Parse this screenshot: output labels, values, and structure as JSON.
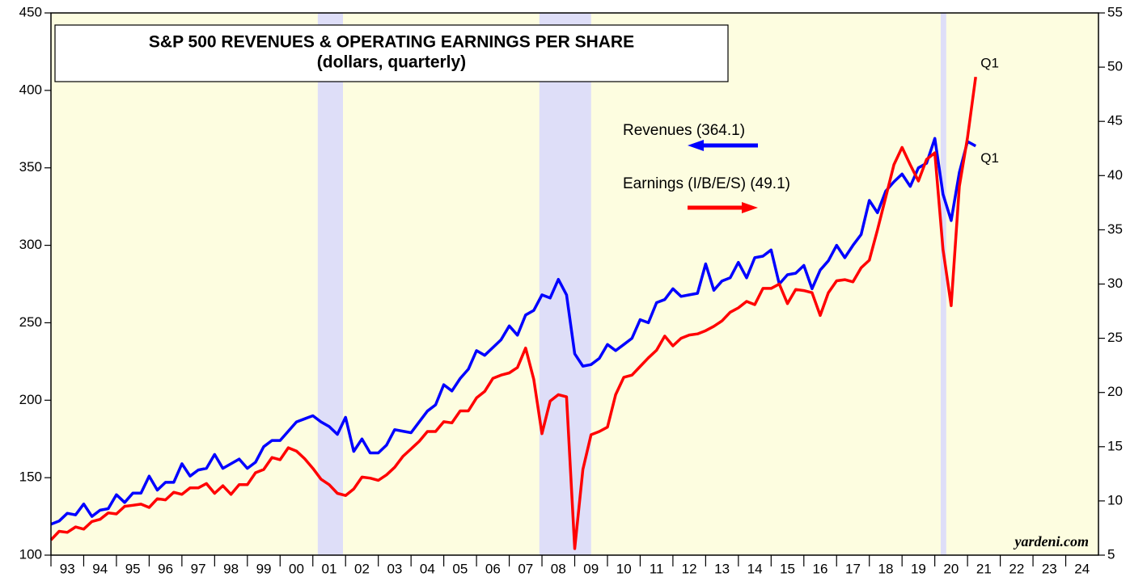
{
  "chart_data": {
    "type": "line",
    "title": "S&P 500 REVENUES & OPERATING EARNINGS PER SHARE",
    "subtitle": "(dollars, quarterly)",
    "source": "yardeni.com",
    "annotations": [
      {
        "text": "Q1",
        "series": 1
      },
      {
        "text": "Q1",
        "series": 0
      }
    ],
    "xlim": [
      1993,
      2025
    ],
    "xticks": [
      {
        "value": 1993,
        "label": "93"
      },
      {
        "value": 1994,
        "label": "94"
      },
      {
        "value": 1995,
        "label": "95"
      },
      {
        "value": 1996,
        "label": "96"
      },
      {
        "value": 1997,
        "label": "97"
      },
      {
        "value": 1998,
        "label": "98"
      },
      {
        "value": 1999,
        "label": "99"
      },
      {
        "value": 2000,
        "label": "00"
      },
      {
        "value": 2001,
        "label": "01"
      },
      {
        "value": 2002,
        "label": "02"
      },
      {
        "value": 2003,
        "label": "03"
      },
      {
        "value": 2004,
        "label": "04"
      },
      {
        "value": 2005,
        "label": "05"
      },
      {
        "value": 2006,
        "label": "06"
      },
      {
        "value": 2007,
        "label": "07"
      },
      {
        "value": 2008,
        "label": "08"
      },
      {
        "value": 2009,
        "label": "09"
      },
      {
        "value": 2010,
        "label": "10"
      },
      {
        "value": 2011,
        "label": "11"
      },
      {
        "value": 2012,
        "label": "12"
      },
      {
        "value": 2013,
        "label": "13"
      },
      {
        "value": 2014,
        "label": "14"
      },
      {
        "value": 2015,
        "label": "15"
      },
      {
        "value": 2016,
        "label": "16"
      },
      {
        "value": 2017,
        "label": "17"
      },
      {
        "value": 2018,
        "label": "18"
      },
      {
        "value": 2019,
        "label": "19"
      },
      {
        "value": 2020,
        "label": "20"
      },
      {
        "value": 2021,
        "label": "21"
      },
      {
        "value": 2022,
        "label": "22"
      },
      {
        "value": 2023,
        "label": "23"
      },
      {
        "value": 2024,
        "label": "24"
      }
    ],
    "ylim": [
      100,
      450
    ],
    "yticks": [
      100,
      150,
      200,
      250,
      300,
      350,
      400,
      450
    ],
    "y2lim": [
      5,
      55
    ],
    "y2ticks": [
      5,
      10,
      15,
      20,
      25,
      30,
      35,
      40,
      45,
      50,
      55
    ],
    "background": "#fdfde0",
    "recessions": {
      "color": "#dedef8",
      "ranges": [
        [
          2001.15,
          2001.92
        ],
        [
          2007.92,
          2009.5
        ],
        [
          2020.18,
          2020.35
        ]
      ]
    },
    "x": [
      1993,
      1993.25,
      1993.5,
      1993.75,
      1994,
      1994.25,
      1994.5,
      1994.75,
      1995,
      1995.25,
      1995.5,
      1995.75,
      1996,
      1996.25,
      1996.5,
      1996.75,
      1997,
      1997.25,
      1997.5,
      1997.75,
      1998,
      1998.25,
      1998.5,
      1998.75,
      1999,
      1999.25,
      1999.5,
      1999.75,
      2000,
      2000.25,
      2000.5,
      2000.75,
      2001,
      2001.25,
      2001.5,
      2001.75,
      2002,
      2002.25,
      2002.5,
      2002.75,
      2003,
      2003.25,
      2003.5,
      2003.75,
      2004,
      2004.25,
      2004.5,
      2004.75,
      2005,
      2005.25,
      2005.5,
      2005.75,
      2006,
      2006.25,
      2006.5,
      2006.75,
      2007,
      2007.25,
      2007.5,
      2007.75,
      2008,
      2008.25,
      2008.5,
      2008.75,
      2009,
      2009.25,
      2009.5,
      2009.75,
      2010,
      2010.25,
      2010.5,
      2010.75,
      2011,
      2011.25,
      2011.5,
      2011.75,
      2012,
      2012.25,
      2012.5,
      2012.75,
      2013,
      2013.25,
      2013.5,
      2013.75,
      2014,
      2014.25,
      2014.5,
      2014.75,
      2015,
      2015.25,
      2015.5,
      2015.75,
      2016,
      2016.25,
      2016.5,
      2016.75,
      2017,
      2017.25,
      2017.5,
      2017.75,
      2018,
      2018.25,
      2018.5,
      2018.75,
      2019,
      2019.25,
      2019.5,
      2019.75,
      2020,
      2020.25,
      2020.5,
      2020.75,
      2021,
      2021.25
    ],
    "series": [
      {
        "name": "Revenues (364.1)",
        "color": "#0000ff",
        "axis": "y",
        "values": [
          120,
          122,
          127,
          126,
          133,
          125,
          129,
          130,
          139,
          134,
          140,
          140,
          151,
          142,
          147,
          147,
          159,
          151,
          155,
          156,
          165,
          156,
          159,
          162,
          156,
          160,
          170,
          174,
          174,
          180,
          186,
          188,
          190,
          186,
          183,
          178,
          189,
          167,
          175,
          166,
          166,
          171,
          181,
          180,
          179,
          186,
          193,
          197,
          210,
          206,
          214,
          220,
          232,
          229,
          234,
          239,
          248,
          242,
          255,
          258,
          268,
          266,
          278,
          268,
          230,
          222,
          223,
          227,
          236,
          232,
          236,
          240,
          252,
          250,
          263,
          265,
          272,
          267,
          268,
          269,
          288,
          271,
          277,
          279,
          289,
          279,
          292,
          293,
          297,
          275,
          281,
          282,
          287,
          272,
          284,
          290,
          300,
          292,
          300,
          307,
          329,
          321,
          335,
          341,
          346,
          338,
          350,
          353,
          369,
          333,
          316,
          347,
          367,
          364.1
        ]
      },
      {
        "name": "Earnings (I/B/E/S) (49.1)",
        "color": "#ff0000",
        "axis": "y2",
        "values": [
          6.4,
          7.2,
          7.1,
          7.6,
          7.4,
          8.1,
          8.3,
          8.9,
          8.8,
          9.5,
          9.6,
          9.7,
          9.4,
          10.2,
          10.1,
          10.8,
          10.6,
          11.2,
          11.2,
          11.6,
          10.7,
          11.4,
          10.6,
          11.5,
          11.5,
          12.6,
          12.9,
          14.0,
          13.8,
          14.9,
          14.6,
          13.9,
          13.0,
          12.0,
          11.5,
          10.7,
          10.5,
          11.1,
          12.2,
          12.1,
          11.9,
          12.4,
          13.1,
          14.1,
          14.8,
          15.5,
          16.4,
          16.4,
          17.3,
          17.2,
          18.3,
          18.3,
          19.5,
          20.1,
          21.3,
          21.6,
          21.8,
          22.3,
          24.1,
          21.2,
          16.2,
          19.2,
          19.8,
          19.6,
          5.6,
          12.9,
          16.1,
          16.4,
          16.8,
          19.8,
          21.4,
          21.6,
          22.4,
          23.2,
          23.9,
          25.2,
          24.3,
          25.0,
          25.3,
          25.4,
          25.7,
          26.1,
          26.6,
          27.4,
          27.8,
          28.4,
          28.1,
          29.6,
          29.6,
          30.0,
          28.2,
          29.5,
          29.4,
          29.2,
          27.1,
          29.2,
          30.3,
          30.4,
          30.2,
          31.5,
          32.2,
          35.0,
          38.0,
          41.0,
          42.6,
          41.0,
          39.5,
          41.5,
          42.1,
          33.2,
          28.0,
          39.0,
          43.5,
          49.1
        ]
      }
    ]
  }
}
